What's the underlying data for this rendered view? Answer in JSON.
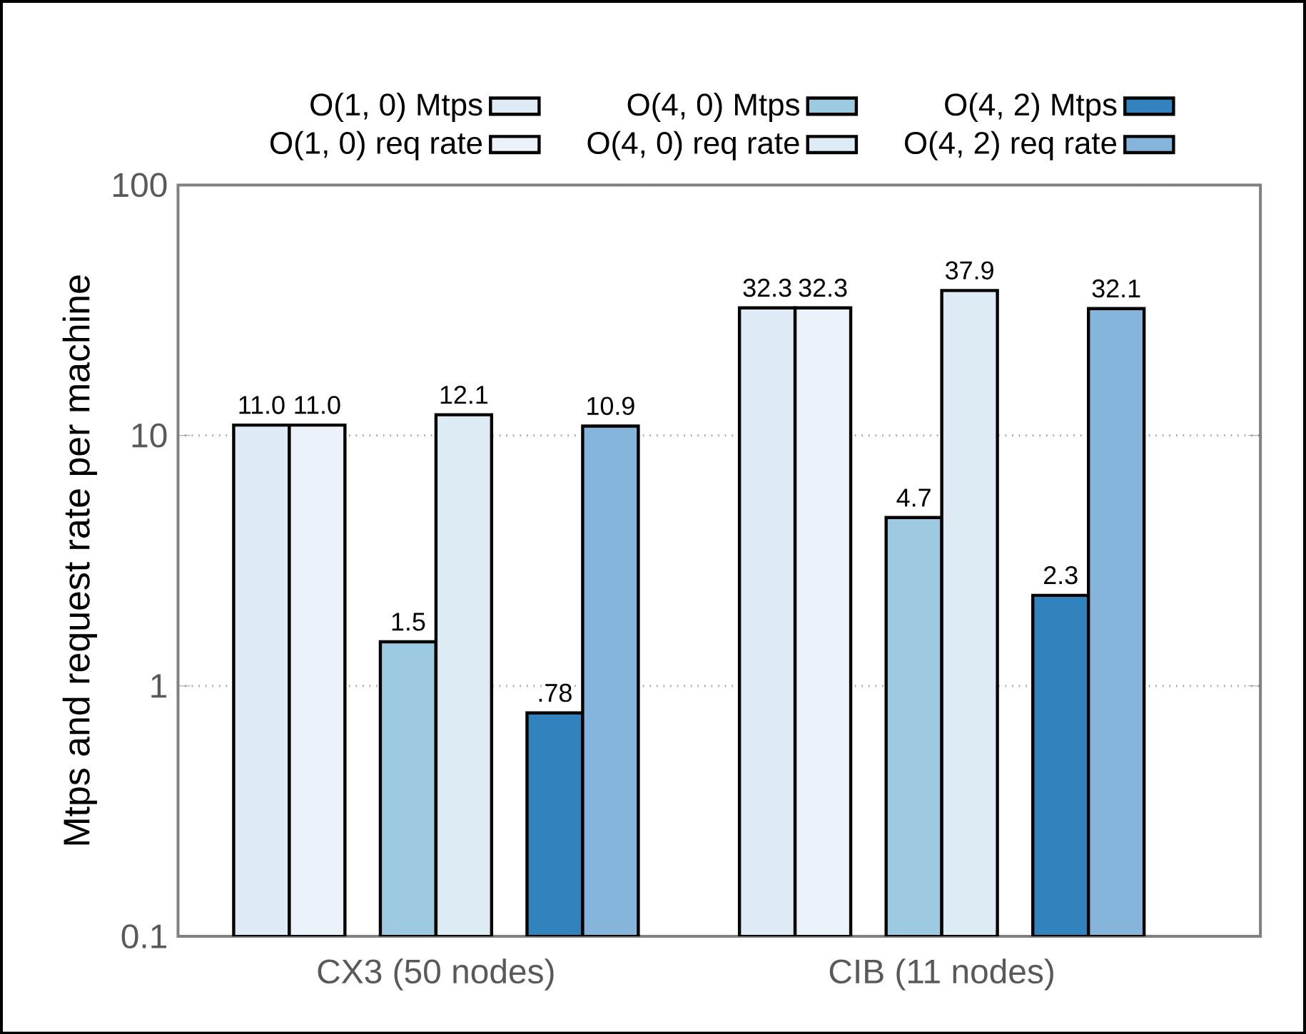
{
  "chart_data": {
    "type": "bar",
    "ylabel": "Mtps and request rate per machine",
    "categories": [
      "CX3 (50 nodes)",
      "CIB (11 nodes)"
    ],
    "series": [
      {
        "name": "O(1, 0) Mtps",
        "color": "#deebf7",
        "values": [
          11.0,
          32.3
        ],
        "value_labels": [
          "11.0",
          "32.3"
        ]
      },
      {
        "name": "O(1, 0) req rate",
        "color": "#ebf2f9",
        "values": [
          11.0,
          32.3
        ],
        "value_labels": [
          "11.0",
          "32.3"
        ]
      },
      {
        "name": "O(4, 0) Mtps",
        "color": "#9ecae1",
        "values": [
          1.5,
          4.7
        ],
        "value_labels": [
          "1.5",
          "4.7"
        ]
      },
      {
        "name": "O(4, 0) req rate",
        "color": "#ddebf5",
        "values": [
          12.1,
          37.9
        ],
        "value_labels": [
          "12.1",
          "37.9"
        ]
      },
      {
        "name": "O(4, 2) Mtps",
        "color": "#3182bd",
        "values": [
          0.78,
          2.3
        ],
        "value_labels": [
          ".78",
          "2.3"
        ]
      },
      {
        "name": "O(4, 2) req rate",
        "color": "#86b5dc",
        "values": [
          10.9,
          32.1
        ],
        "value_labels": [
          "10.9",
          "32.1"
        ]
      }
    ],
    "log": "y",
    "ylim": [
      0.1,
      100
    ],
    "yticks": [
      0.1,
      1,
      10,
      100
    ],
    "grid": "y",
    "legend": "top"
  }
}
